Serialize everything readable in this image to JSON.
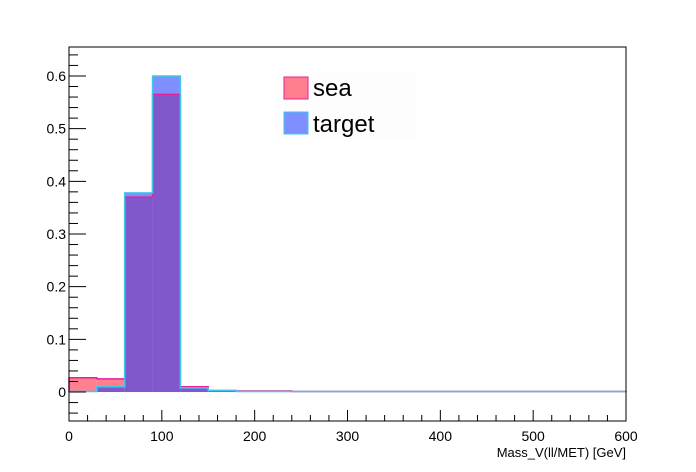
{
  "chart_data": {
    "type": "bar",
    "xlabel": "Mass_V(ll/MET) [GeV]",
    "ylabel": "",
    "xlim": [
      0,
      600
    ],
    "ylim": [
      -0.055,
      0.655
    ],
    "x_ticks": [
      0,
      100,
      200,
      300,
      400,
      500,
      600
    ],
    "y_ticks": [
      0,
      0.1,
      0.2,
      0.3,
      0.4,
      0.5,
      0.6
    ],
    "x_tick_labels": [
      "0",
      "100",
      "200",
      "300",
      "400",
      "500",
      "600"
    ],
    "y_tick_labels": [
      "0",
      "0.1",
      "0.2",
      "0.3",
      "0.4",
      "0.5",
      "0.6"
    ],
    "bin_edges": [
      0,
      30,
      60,
      90,
      120,
      150,
      180,
      210,
      240,
      270,
      300,
      330,
      360,
      390,
      420,
      450,
      480,
      510,
      540,
      570,
      600
    ],
    "grid": false,
    "legend_position": "top-center",
    "series": [
      {
        "name": "sea",
        "fill": "#ff7f8f",
        "line": "#e8209a",
        "values": [
          0.027,
          0.025,
          0.37,
          0.565,
          0.01,
          0.003,
          0.002,
          0.002,
          0.001,
          0.001,
          0.001,
          0.001,
          0.001,
          0.001,
          0.001,
          0.001,
          0.001,
          0.001,
          0.001,
          0.001
        ]
      },
      {
        "name": "target",
        "fill": "#7f8fff",
        "line": "#40c8e8",
        "values": [
          0.001,
          0.01,
          0.378,
          0.6,
          0.008,
          0.003,
          0.001,
          0.001,
          0.001,
          0.001,
          0.001,
          0.001,
          0.001,
          0.001,
          0.001,
          0.001,
          0.001,
          0.001,
          0.001,
          0.001
        ]
      }
    ],
    "overlap_fill": "#8058cc"
  }
}
